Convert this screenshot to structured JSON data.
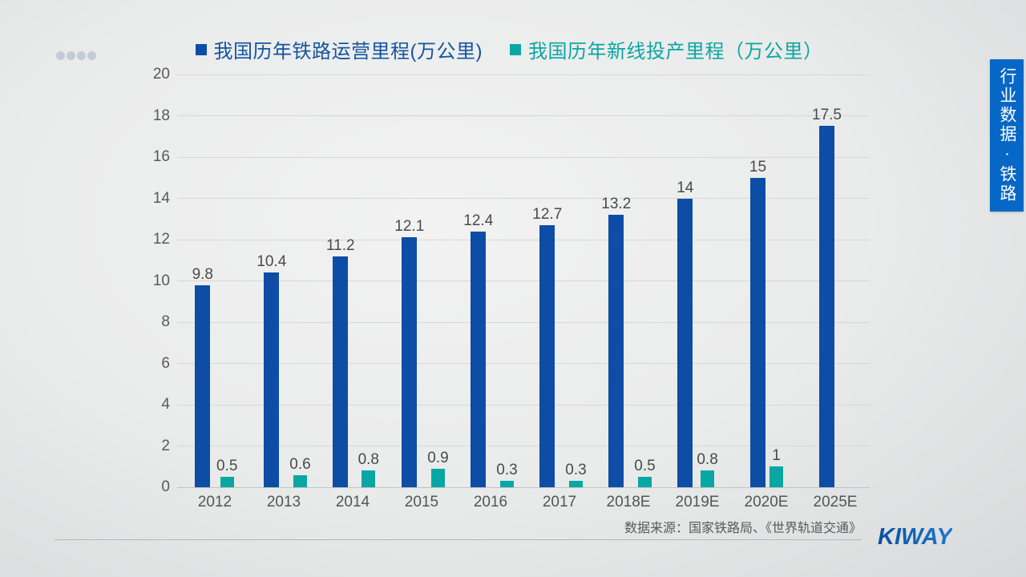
{
  "page": {
    "dots": 4
  },
  "legend": [
    {
      "label": "我国历年铁路运营里程(万公里)",
      "color": "#13549f",
      "swatch_color": "#0d4da6"
    },
    {
      "label": "我国历年新线投产里程（万公里）",
      "color": "#0aa7a2",
      "swatch_color": "#08a7a4"
    }
  ],
  "chart_data": {
    "type": "bar",
    "categories": [
      "2012",
      "2013",
      "2014",
      "2015",
      "2016",
      "2017",
      "2018E",
      "2019E",
      "2020E",
      "2025E"
    ],
    "series": [
      {
        "name": "我国历年铁路运营里程(万公里)",
        "color": "#0d4da6",
        "values": [
          9.8,
          10.4,
          11.2,
          12.1,
          12.4,
          12.7,
          13.2,
          14,
          15,
          17.5
        ]
      },
      {
        "name": "我国历年新线投产里程（万公里）",
        "color": "#08a7a4",
        "values": [
          0.5,
          0.6,
          0.8,
          0.9,
          0.3,
          0.3,
          0.5,
          0.8,
          1,
          null
        ]
      }
    ],
    "ylim": [
      0,
      20
    ],
    "ytick_step": 2,
    "grid": true,
    "legend_position": "top",
    "value_labels": true
  },
  "footer": {
    "source": "数据来源：国家铁路局、《世界轨道交通》",
    "logo": "KIWAY"
  },
  "sidebar_tab": {
    "label": "行业数据·铁路"
  }
}
